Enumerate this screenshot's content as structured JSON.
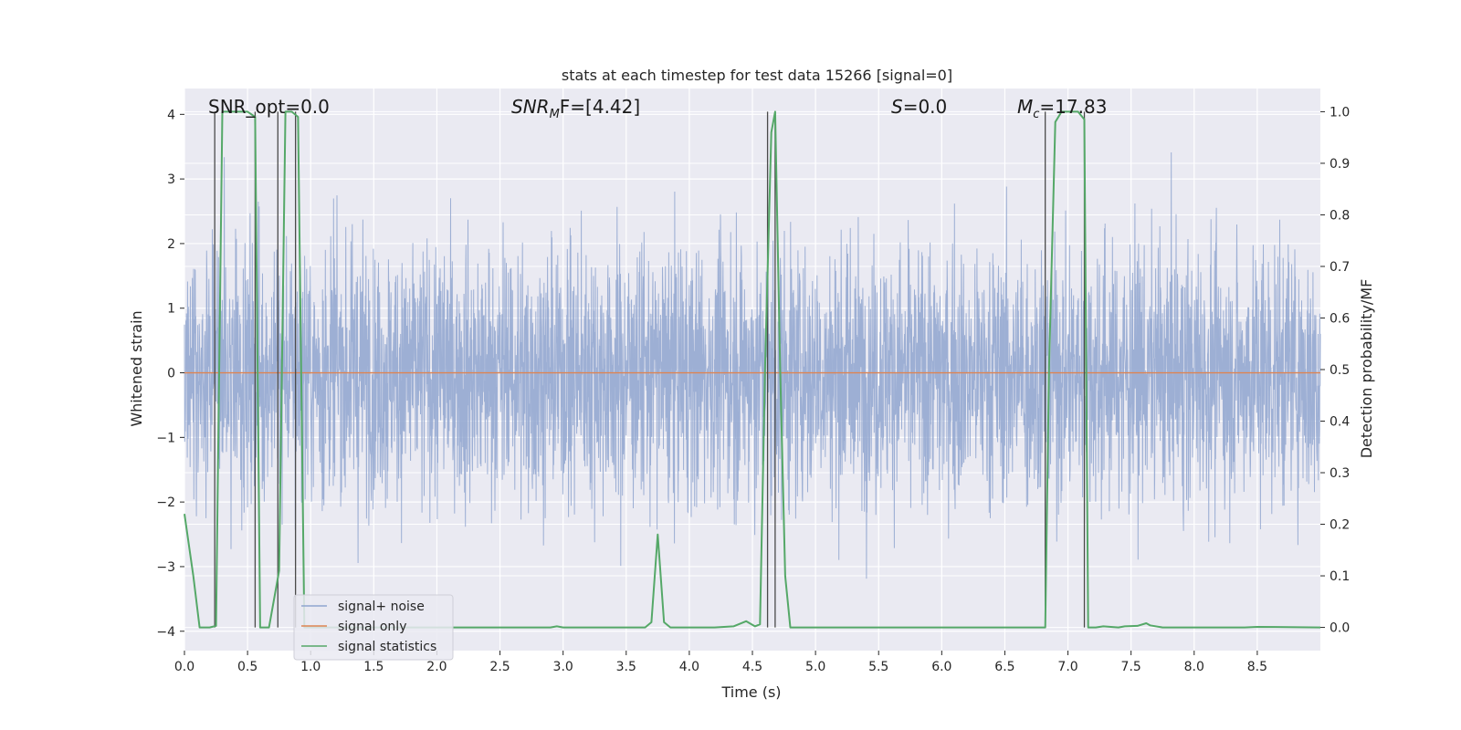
{
  "chart_data": {
    "type": "line",
    "title": "stats at each timestep for test data 15266 [signal=0]",
    "xlabel": "Time (s)",
    "ylabel": "Whitened strain",
    "ylabel_right": "Detection probability/MF",
    "xlim": [
      0.0,
      9.0
    ],
    "ylim": [
      -4.3,
      4.4
    ],
    "ylim_right": [
      -0.045,
      1.045
    ],
    "x_ticks": [
      0.0,
      0.5,
      1.0,
      1.5,
      2.0,
      2.5,
      3.0,
      3.5,
      4.0,
      4.5,
      5.0,
      5.5,
      6.0,
      6.5,
      7.0,
      7.5,
      8.0,
      8.5
    ],
    "x_tick_labels": [
      "0.0",
      "0.5",
      "1.0",
      "1.5",
      "2.0",
      "2.5",
      "3.0",
      "3.5",
      "4.0",
      "4.5",
      "5.0",
      "5.5",
      "6.0",
      "6.5",
      "7.0",
      "7.5",
      "8.0",
      "8.5"
    ],
    "y_ticks": [
      -4,
      -3,
      -2,
      -1,
      0,
      1,
      2,
      3,
      4
    ],
    "y_tick_labels": [
      "−4",
      "−3",
      "−2",
      "−1",
      "0",
      "1",
      "2",
      "3",
      "4"
    ],
    "y_right_ticks": [
      0.0,
      0.1,
      0.2,
      0.3,
      0.4,
      0.5,
      0.6,
      0.7,
      0.8,
      0.9,
      1.0
    ],
    "y_right_tick_labels": [
      "0.0",
      "0.1",
      "0.2",
      "0.3",
      "0.4",
      "0.5",
      "0.6",
      "0.7",
      "0.8",
      "0.9",
      "1.0"
    ],
    "grid": true,
    "legend_position": "lower-left",
    "series": [
      {
        "name": "signal+ noise",
        "color": "#8fa5cf",
        "axis": "left",
        "kind": "noise",
        "envelope": {
          "typical_amplitude": 1.0,
          "max_abs": 3.8
        }
      },
      {
        "name": "signal only",
        "color": "#dd8452",
        "axis": "left",
        "x": [
          0.0,
          9.0
        ],
        "y": [
          0.0,
          0.0
        ]
      },
      {
        "name": "signal statistics",
        "color": "#55a868",
        "axis": "right",
        "x": [
          0.0,
          0.07,
          0.12,
          0.2,
          0.25,
          0.3,
          0.4,
          0.5,
          0.56,
          0.6,
          0.67,
          0.75,
          0.8,
          0.85,
          0.9,
          0.95,
          1.0,
          1.5,
          2.0,
          2.5,
          2.9,
          2.95,
          3.0,
          3.5,
          3.65,
          3.7,
          3.75,
          3.8,
          3.85,
          4.0,
          4.2,
          4.35,
          4.45,
          4.52,
          4.56,
          4.6,
          4.65,
          4.68,
          4.72,
          4.76,
          4.8,
          5.0,
          6.0,
          6.5,
          6.82,
          6.85,
          6.9,
          6.95,
          7.0,
          7.08,
          7.13,
          7.16,
          7.22,
          7.28,
          7.4,
          7.45,
          7.55,
          7.62,
          7.65,
          7.75,
          8.0,
          8.4,
          8.5,
          9.0
        ],
        "y": [
          0.22,
          0.1,
          0.0,
          0.0,
          0.003,
          1.0,
          1.0,
          1.0,
          0.99,
          0.0,
          0.0,
          0.11,
          1.0,
          1.0,
          0.99,
          0.0,
          0.0,
          0.0,
          0.0,
          0.0,
          0.0,
          0.002,
          0.0,
          0.0,
          0.0,
          0.01,
          0.18,
          0.01,
          0.0,
          0.0,
          0.0,
          0.002,
          0.012,
          0.002,
          0.006,
          0.5,
          0.96,
          1.0,
          0.5,
          0.1,
          0.0,
          0.0,
          0.0,
          0.0,
          0.0,
          0.5,
          0.98,
          1.0,
          1.0,
          1.0,
          0.985,
          0.0,
          0.0,
          0.002,
          0.0,
          0.002,
          0.003,
          0.008,
          0.004,
          0.0,
          0.0,
          0.0,
          0.001,
          0.0
        ]
      }
    ],
    "trigger_lines": {
      "color": "#4a4a4a",
      "x": [
        0.24,
        0.56,
        0.74,
        0.88,
        4.62,
        4.68,
        6.82,
        7.13
      ],
      "y_range": [
        0.0,
        1.0
      ]
    },
    "annotations": [
      {
        "id": "snr-opt",
        "text": "SNR_opt=0.0"
      },
      {
        "id": "snr-mf",
        "base": "SNR",
        "sub": "M",
        "rest": "F=[4.42]"
      },
      {
        "id": "s-value",
        "italic": "S",
        "rest": "=0.0"
      },
      {
        "id": "chirp-mass",
        "base": "M",
        "sub": "c",
        "rest": "=17.83"
      }
    ]
  }
}
